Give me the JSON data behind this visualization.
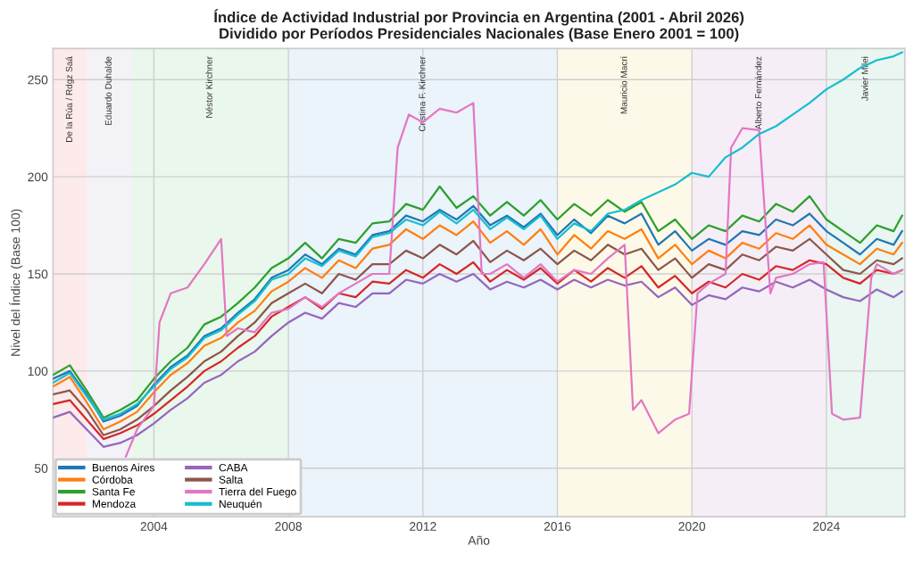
{
  "chart_data": {
    "type": "line",
    "title": "Índice de Actividad Industrial por Provincia en Argentina (2001 - Abril 2026)",
    "subtitle": "Dividido por Períodos Presidenciales Nacionales (Base Enero 2001 = 100)",
    "xlabel": "Año",
    "ylabel": "Nivel del Índice (Base 100)",
    "x": [
      "2001-01",
      "2001-07",
      "2002-01",
      "2002-07",
      "2003-01",
      "2003-07",
      "2004-01",
      "2004-07",
      "2005-01",
      "2005-07",
      "2006-01",
      "2006-07",
      "2007-01",
      "2007-07",
      "2008-01",
      "2008-07",
      "2009-01",
      "2009-07",
      "2010-01",
      "2010-07",
      "2011-01",
      "2011-07",
      "2012-01",
      "2012-07",
      "2013-01",
      "2013-07",
      "2014-01",
      "2014-07",
      "2015-01",
      "2015-07",
      "2016-01",
      "2016-07",
      "2017-01",
      "2017-07",
      "2018-01",
      "2018-07",
      "2019-01",
      "2019-07",
      "2020-01",
      "2020-07",
      "2021-01",
      "2021-07",
      "2022-01",
      "2022-07",
      "2023-01",
      "2023-07",
      "2024-01",
      "2024-07",
      "2025-01",
      "2025-07",
      "2026-01",
      "2026-04"
    ],
    "series": [
      {
        "name": "Buenos Aires",
        "color": "#1f77b4",
        "values": [
          96,
          100,
          88,
          74,
          77,
          82,
          93,
          102,
          108,
          118,
          122,
          130,
          137,
          148,
          152,
          160,
          155,
          163,
          160,
          170,
          172,
          180,
          177,
          183,
          178,
          185,
          175,
          180,
          174,
          181,
          170,
          178,
          171,
          180,
          176,
          181,
          165,
          172,
          162,
          168,
          165,
          172,
          170,
          178,
          175,
          181,
          172,
          166,
          160,
          168,
          165,
          172
        ]
      },
      {
        "name": "Córdoba",
        "color": "#ff7f0e",
        "values": [
          92,
          97,
          84,
          70,
          74,
          79,
          89,
          98,
          104,
          113,
          117,
          125,
          131,
          141,
          146,
          153,
          148,
          157,
          153,
          163,
          165,
          173,
          168,
          175,
          170,
          177,
          166,
          172,
          165,
          173,
          160,
          170,
          163,
          172,
          168,
          173,
          158,
          165,
          155,
          162,
          158,
          166,
          163,
          171,
          168,
          175,
          165,
          160,
          155,
          163,
          160,
          166
        ]
      },
      {
        "name": "Santa Fe",
        "color": "#2ca02c",
        "values": [
          98,
          103,
          90,
          76,
          80,
          85,
          96,
          105,
          112,
          124,
          128,
          135,
          143,
          153,
          158,
          166,
          158,
          168,
          166,
          176,
          177,
          186,
          183,
          195,
          184,
          190,
          180,
          187,
          180,
          188,
          178,
          186,
          180,
          188,
          182,
          187,
          172,
          178,
          168,
          175,
          172,
          180,
          177,
          186,
          182,
          190,
          178,
          172,
          166,
          175,
          172,
          180
        ]
      },
      {
        "name": "Mendoza",
        "color": "#d62728",
        "values": [
          83,
          85,
          75,
          65,
          68,
          72,
          78,
          85,
          92,
          100,
          105,
          112,
          118,
          128,
          133,
          138,
          132,
          140,
          138,
          146,
          145,
          152,
          148,
          155,
          150,
          156,
          146,
          152,
          147,
          153,
          145,
          152,
          146,
          153,
          148,
          154,
          143,
          149,
          140,
          146,
          143,
          150,
          147,
          154,
          152,
          157,
          155,
          148,
          145,
          152,
          150,
          152
        ]
      },
      {
        "name": "CABA",
        "color": "#9467bd",
        "values": [
          76,
          79,
          70,
          61,
          63,
          67,
          73,
          80,
          86,
          94,
          98,
          105,
          110,
          118,
          125,
          130,
          127,
          135,
          133,
          140,
          140,
          147,
          145,
          150,
          146,
          150,
          142,
          146,
          143,
          147,
          142,
          147,
          143,
          147,
          144,
          146,
          138,
          143,
          134,
          139,
          137,
          143,
          141,
          146,
          143,
          147,
          142,
          138,
          136,
          142,
          138,
          141
        ]
      },
      {
        "name": "Salta",
        "color": "#8c564b",
        "values": [
          88,
          90,
          80,
          67,
          70,
          75,
          82,
          90,
          97,
          105,
          110,
          118,
          125,
          135,
          140,
          145,
          140,
          150,
          147,
          155,
          155,
          162,
          158,
          165,
          160,
          167,
          156,
          162,
          157,
          163,
          155,
          162,
          157,
          165,
          160,
          163,
          152,
          158,
          148,
          155,
          152,
          160,
          157,
          164,
          162,
          168,
          160,
          152,
          150,
          157,
          155,
          158
        ]
      },
      {
        "name": "Tierra del Fuego",
        "color": "#e377c2",
        "x": [
          "2003-03",
          "2003-07",
          "2004-01",
          "2004-03",
          "2004-07",
          "2005-01",
          "2005-07",
          "2006-01",
          "2006-03",
          "2006-07",
          "2007-01",
          "2007-07",
          "2008-01",
          "2008-07",
          "2009-01",
          "2009-07",
          "2010-01",
          "2010-07",
          "2011-01",
          "2011-04",
          "2011-08",
          "2012-01",
          "2012-07",
          "2013-01",
          "2013-07",
          "2013-10",
          "2014-01",
          "2014-07",
          "2015-01",
          "2015-07",
          "2016-01",
          "2016-07",
          "2017-01",
          "2017-07",
          "2018-01",
          "2018-04",
          "2018-07",
          "2019-01",
          "2019-07",
          "2019-12",
          "2020-03",
          "2020-07",
          "2021-01",
          "2021-03",
          "2021-07",
          "2022-01",
          "2022-05",
          "2022-07",
          "2023-01",
          "2023-07",
          "2023-12",
          "2024-03",
          "2024-07",
          "2025-01",
          "2025-05",
          "2025-07",
          "2026-01",
          "2026-04"
        ],
        "values": [
          56,
          70,
          82,
          125,
          140,
          143,
          155,
          168,
          118,
          122,
          120,
          130,
          132,
          138,
          133,
          140,
          145,
          150,
          150,
          215,
          232,
          228,
          235,
          233,
          238,
          150,
          150,
          155,
          148,
          155,
          146,
          152,
          150,
          158,
          165,
          80,
          85,
          68,
          75,
          78,
          140,
          145,
          150,
          215,
          225,
          224,
          140,
          148,
          150,
          155,
          156,
          78,
          75,
          76,
          148,
          155,
          150,
          152
        ]
      },
      {
        "name": "Neuquén",
        "color": "#17becf",
        "values": [
          94,
          99,
          87,
          75,
          78,
          83,
          92,
          101,
          107,
          117,
          121,
          129,
          136,
          147,
          150,
          158,
          154,
          162,
          159,
          169,
          171,
          178,
          175,
          182,
          176,
          183,
          173,
          179,
          173,
          180,
          168,
          176,
          172,
          181,
          183,
          188,
          192,
          196,
          202,
          200,
          210,
          215,
          222,
          226,
          232,
          238,
          245,
          250,
          256,
          260,
          262,
          264
        ]
      }
    ],
    "xlim": [
      "2001-01",
      "2026-05"
    ],
    "xticks": [
      "2004",
      "2008",
      "2012",
      "2016",
      "2020",
      "2024"
    ],
    "ylim": [
      25,
      266
    ],
    "yticks": [
      50,
      100,
      150,
      200,
      250
    ],
    "bands": [
      {
        "axis": "x",
        "from": "2001-01",
        "to": "2002-01",
        "label": "De la Rúa / Rdgz Saá",
        "color": "#fdeaea"
      },
      {
        "axis": "x",
        "from": "2002-01",
        "to": "2003-05",
        "label": "Eduardo Duhalde",
        "color": "#f2f2f7"
      },
      {
        "axis": "x",
        "from": "2003-05",
        "to": "2008-01",
        "label": "Néstor Kirchner",
        "color": "#eaf7ec"
      },
      {
        "axis": "x",
        "from": "2008-01",
        "to": "2016-01",
        "label": "Cristina F. Kirchner",
        "color": "#ebf3fb"
      },
      {
        "axis": "x",
        "from": "2016-01",
        "to": "2020-01",
        "label": "Mauricio Macri",
        "color": "#fdf9e9"
      },
      {
        "axis": "x",
        "from": "2020-01",
        "to": "2024-01",
        "label": "Alberto Fernández",
        "color": "#f5eef7"
      },
      {
        "axis": "x",
        "from": "2024-01",
        "to": "2026-05",
        "label": "Javier Milei",
        "color": "#e9f6f1"
      }
    ],
    "grid": true,
    "legend": "bottom left",
    "line_style": "solid",
    "marker": "none"
  }
}
